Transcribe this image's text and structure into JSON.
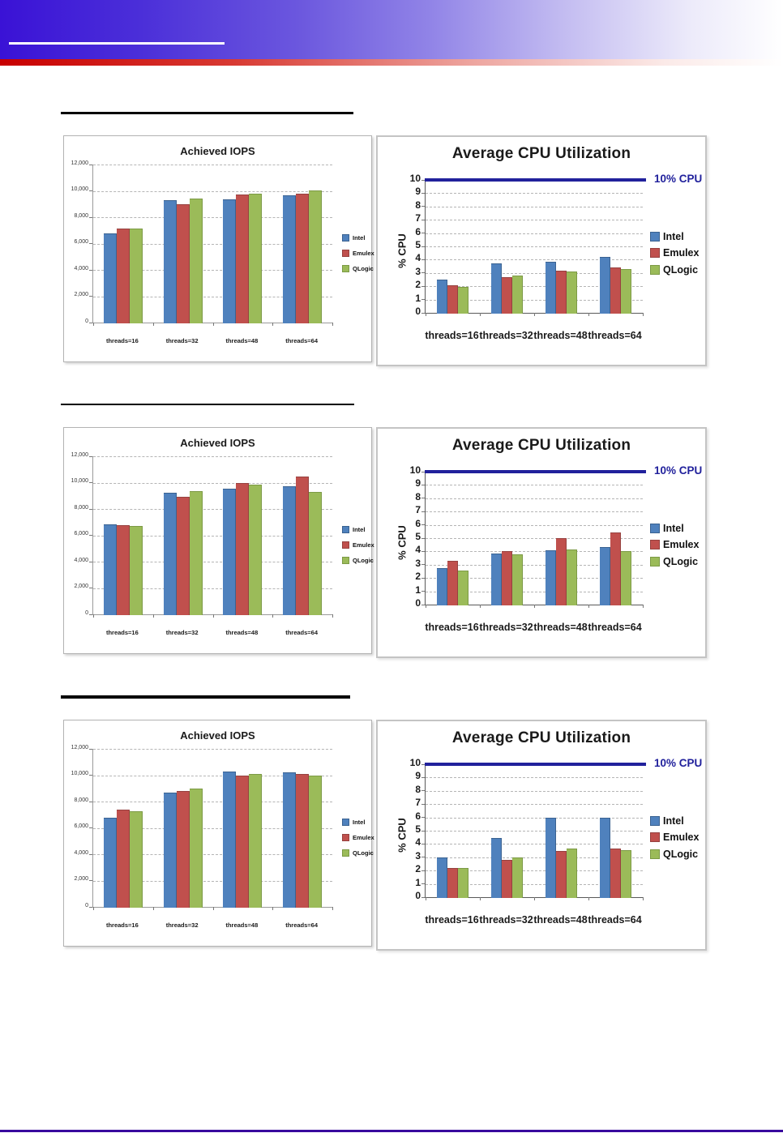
{
  "page": {
    "header": {
      "gradient_left_color": "#3a12d6",
      "red_stripe_color": "#c80000",
      "title_underline_color": "#ffffff"
    },
    "footer_rule_color": "#38099d",
    "section_underline_color": "#000000"
  },
  "series_colors": {
    "Intel": "#4f81bd",
    "Emulex": "#c0504d",
    "QLogic": "#9bbb59",
    "Intel_border": "#3a6291",
    "Emulex_border": "#96413f",
    "QLogic_border": "#7c9a45",
    "reference_navy": "#21219c"
  },
  "chart_data": [
    {
      "type": "bar",
      "title": "Achieved IOPS",
      "categories": [
        "threads=16",
        "threads=32",
        "threads=48",
        "threads=64"
      ],
      "series": [
        {
          "name": "Intel",
          "color": "#4f81bd",
          "border": "#3a6291",
          "values": [
            6800,
            9300,
            9350,
            9650
          ]
        },
        {
          "name": "Emulex",
          "color": "#c0504d",
          "border": "#96413f",
          "values": [
            7150,
            9000,
            9750,
            9800
          ]
        },
        {
          "name": "QLogic",
          "color": "#9bbb59",
          "border": "#7c9a45",
          "values": [
            7150,
            9400,
            9800,
            10050
          ]
        }
      ],
      "ylim": [
        0,
        12000
      ],
      "ytick": 2000,
      "grid": "dashed",
      "legend_position": "right"
    },
    {
      "type": "bar",
      "title": "Average CPU Utilization",
      "ylabel": "% CPU",
      "annotation": "10% CPU",
      "reference_line": {
        "value": 10,
        "color": "#21219c"
      },
      "categories": [
        "threads=16",
        "threads=32",
        "threads=48",
        "threads=64"
      ],
      "series": [
        {
          "name": "Intel",
          "color": "#4f81bd",
          "border": "#3a6291",
          "values": [
            2.5,
            3.75,
            3.85,
            4.2
          ]
        },
        {
          "name": "Emulex",
          "color": "#c0504d",
          "border": "#96413f",
          "values": [
            2.05,
            2.7,
            3.2,
            3.4
          ]
        },
        {
          "name": "QLogic",
          "color": "#9bbb59",
          "border": "#7c9a45",
          "values": [
            1.95,
            2.8,
            3.1,
            3.3
          ]
        }
      ],
      "ylim": [
        0,
        10
      ],
      "ytick": 1,
      "grid": "dashed",
      "legend_position": "right"
    },
    {
      "type": "bar",
      "title": "Achieved IOPS",
      "categories": [
        "threads=16",
        "threads=32",
        "threads=48",
        "threads=64"
      ],
      "series": [
        {
          "name": "Intel",
          "color": "#4f81bd",
          "border": "#3a6291",
          "values": [
            6850,
            9250,
            9550,
            9700
          ]
        },
        {
          "name": "Emulex",
          "color": "#c0504d",
          "border": "#96413f",
          "values": [
            6800,
            8900,
            10000,
            10450
          ]
        },
        {
          "name": "QLogic",
          "color": "#9bbb59",
          "border": "#7c9a45",
          "values": [
            6700,
            9350,
            9850,
            9300
          ]
        }
      ],
      "ylim": [
        0,
        12000
      ],
      "ytick": 2000,
      "grid": "dashed",
      "legend_position": "right"
    },
    {
      "type": "bar",
      "title": "Average CPU Utilization",
      "ylabel": "% CPU",
      "annotation": "10% CPU",
      "reference_line": {
        "value": 10,
        "color": "#21219c"
      },
      "categories": [
        "threads=16",
        "threads=32",
        "threads=48",
        "threads=64"
      ],
      "series": [
        {
          "name": "Intel",
          "color": "#4f81bd",
          "border": "#3a6291",
          "values": [
            2.75,
            3.85,
            4.1,
            4.3
          ]
        },
        {
          "name": "Emulex",
          "color": "#c0504d",
          "border": "#96413f",
          "values": [
            3.3,
            4.05,
            5.0,
            5.45
          ]
        },
        {
          "name": "QLogic",
          "color": "#9bbb59",
          "border": "#7c9a45",
          "values": [
            2.55,
            3.8,
            4.15,
            4.0
          ]
        }
      ],
      "ylim": [
        0,
        10
      ],
      "ytick": 1,
      "grid": "dashed",
      "legend_position": "right"
    },
    {
      "type": "bar",
      "title": "Achieved IOPS",
      "categories": [
        "threads=16",
        "threads=32",
        "threads=48",
        "threads=64"
      ],
      "series": [
        {
          "name": "Intel",
          "color": "#4f81bd",
          "border": "#3a6291",
          "values": [
            6750,
            8650,
            10250,
            10200
          ]
        },
        {
          "name": "Emulex",
          "color": "#c0504d",
          "border": "#96413f",
          "values": [
            7400,
            8800,
            10000,
            10100
          ]
        },
        {
          "name": "QLogic",
          "color": "#9bbb59",
          "border": "#7c9a45",
          "values": [
            7250,
            9000,
            10100,
            10000
          ]
        }
      ],
      "ylim": [
        0,
        12000
      ],
      "ytick": 2000,
      "grid": "dashed",
      "legend_position": "right"
    },
    {
      "type": "bar",
      "title": "Average CPU Utilization",
      "ylabel": "% CPU",
      "annotation": "10% CPU",
      "reference_line": {
        "value": 10,
        "color": "#21219c"
      },
      "categories": [
        "threads=16",
        "threads=32",
        "threads=48",
        "threads=64"
      ],
      "series": [
        {
          "name": "Intel",
          "color": "#4f81bd",
          "border": "#3a6291",
          "values": [
            3.0,
            4.45,
            6.0,
            6.0
          ]
        },
        {
          "name": "Emulex",
          "color": "#c0504d",
          "border": "#96413f",
          "values": [
            2.2,
            2.8,
            3.45,
            3.65
          ]
        },
        {
          "name": "QLogic",
          "color": "#9bbb59",
          "border": "#7c9a45",
          "values": [
            2.2,
            3.0,
            3.65,
            3.55
          ]
        }
      ],
      "ylim": [
        0,
        10
      ],
      "ytick": 1,
      "grid": "dashed",
      "legend_position": "right"
    }
  ]
}
